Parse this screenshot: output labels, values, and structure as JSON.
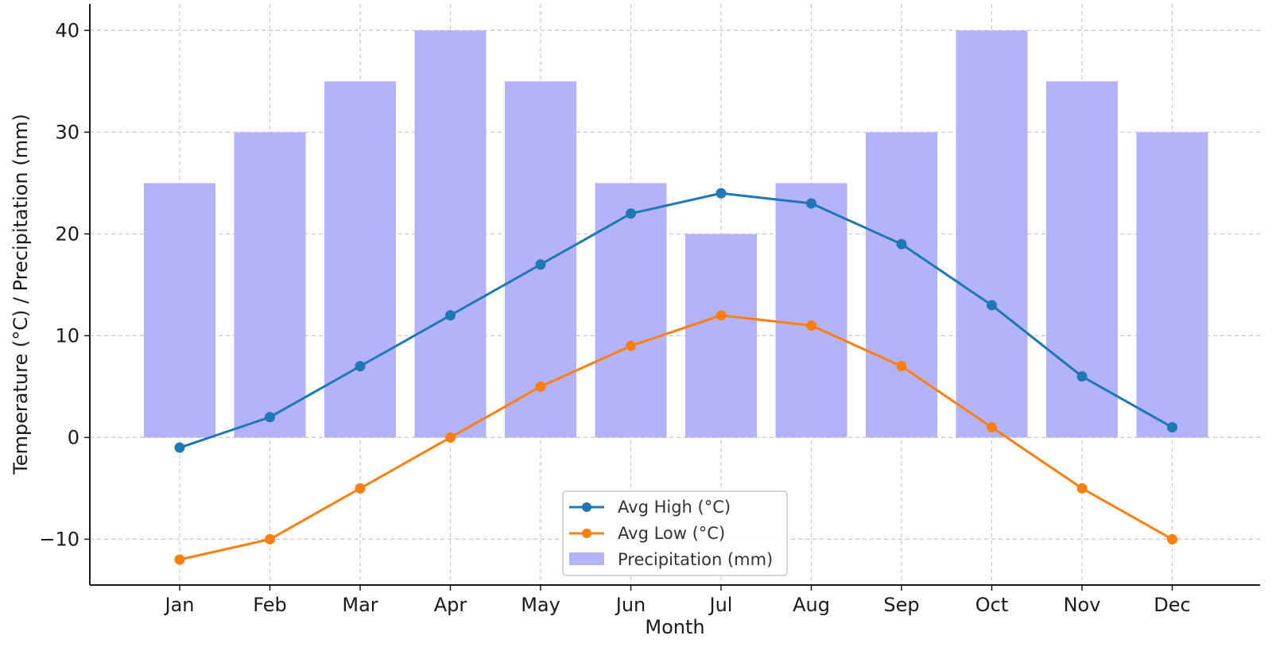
{
  "chart_data": {
    "type": "bar+line",
    "title": "",
    "xlabel": "Month",
    "ylabel": "Temperature (°C) / Precipitation (mm)",
    "categories": [
      "Jan",
      "Feb",
      "Mar",
      "Apr",
      "May",
      "Jun",
      "Jul",
      "Aug",
      "Sep",
      "Oct",
      "Nov",
      "Dec"
    ],
    "ylim": [
      -14.5,
      42.6
    ],
    "yticks": [
      -10,
      0,
      10,
      20,
      30,
      40
    ],
    "ytick_labels": [
      "−10",
      "0",
      "10",
      "20",
      "30",
      "40"
    ],
    "grid": true,
    "legend_position": "bottom-center",
    "bars": {
      "name": "Precipitation (mm)",
      "color": "#b3b3fb",
      "values": [
        25,
        30,
        35,
        40,
        35,
        25,
        20,
        25,
        30,
        40,
        35,
        30
      ]
    },
    "series": [
      {
        "name": "Avg High (°C)",
        "color": "#1f77b4",
        "values": [
          -1,
          2,
          7,
          12,
          17,
          22,
          24,
          23,
          19,
          13,
          6,
          1
        ]
      },
      {
        "name": "Avg Low (°C)",
        "color": "#ff7f0e",
        "values": [
          -12,
          -10,
          -5,
          0,
          5,
          9,
          12,
          11,
          7,
          1,
          -5,
          -10
        ]
      }
    ]
  }
}
